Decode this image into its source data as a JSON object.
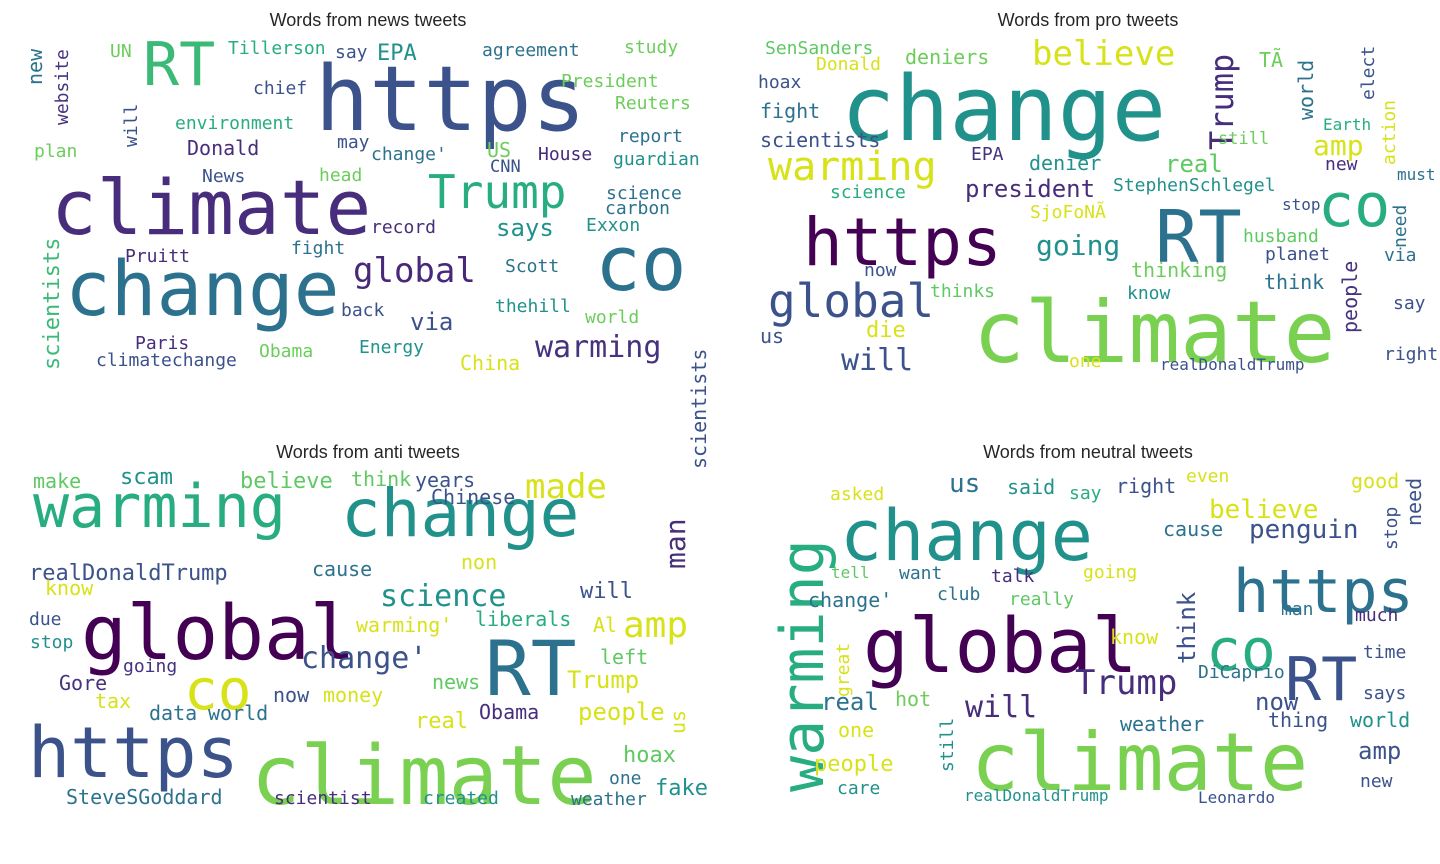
{
  "chart_data": [
    {
      "type": "wordcloud",
      "title": "Words from news tweets",
      "words": [
        {
          "text": "https",
          "color": "#3b528b"
        },
        {
          "text": "climate",
          "color": "#472d7b"
        },
        {
          "text": "change",
          "color": "#2c728e"
        },
        {
          "text": "co",
          "color": "#2c728e"
        },
        {
          "text": "RT",
          "color": "#3aba76"
        },
        {
          "text": "Trump",
          "color": "#27ad81"
        },
        {
          "text": "global",
          "color": "#482878"
        },
        {
          "text": "warming",
          "color": "#46327e"
        },
        {
          "text": "via",
          "color": "#3b528b"
        },
        {
          "text": "says",
          "color": "#21918c"
        },
        {
          "text": "scientists",
          "color": "#3aba76"
        },
        {
          "text": "new",
          "color": "#2c728e"
        },
        {
          "text": "website",
          "color": "#46327e"
        },
        {
          "text": "will",
          "color": "#3b528b"
        },
        {
          "text": "plan",
          "color": "#6ccd5a"
        },
        {
          "text": "UN",
          "color": "#6ccd5a"
        },
        {
          "text": "Tillerson",
          "color": "#27ad81"
        },
        {
          "text": "say",
          "color": "#3b528b"
        },
        {
          "text": "EPA",
          "color": "#21918c"
        },
        {
          "text": "agreement",
          "color": "#2c728e"
        },
        {
          "text": "study",
          "color": "#6ccd5a"
        },
        {
          "text": "chief",
          "color": "#3b528b"
        },
        {
          "text": "President",
          "color": "#6ccd5a"
        },
        {
          "text": "Reuters",
          "color": "#6ccd5a"
        },
        {
          "text": "environment",
          "color": "#27ad81"
        },
        {
          "text": "may",
          "color": "#3b528b"
        },
        {
          "text": "report",
          "color": "#2c728e"
        },
        {
          "text": "Donald",
          "color": "#472d7b"
        },
        {
          "text": "change'",
          "color": "#2c728e"
        },
        {
          "text": "US",
          "color": "#6ccd5a"
        },
        {
          "text": "House",
          "color": "#482878"
        },
        {
          "text": "guardian",
          "color": "#21918c"
        },
        {
          "text": "CNN",
          "color": "#3b528b"
        },
        {
          "text": "News",
          "color": "#3b528b"
        },
        {
          "text": "head",
          "color": "#6ccd5a"
        },
        {
          "text": "science",
          "color": "#2c728e"
        },
        {
          "text": "carbon",
          "color": "#2c728e"
        },
        {
          "text": "Exxon",
          "color": "#21918c"
        },
        {
          "text": "record",
          "color": "#472d7b"
        },
        {
          "text": "Pruitt",
          "color": "#472d7b"
        },
        {
          "text": "fight",
          "color": "#2c728e"
        },
        {
          "text": "Scott",
          "color": "#2c728e"
        },
        {
          "text": "back",
          "color": "#3b528b"
        },
        {
          "text": "thehill",
          "color": "#21918c"
        },
        {
          "text": "world",
          "color": "#6ccd5a"
        },
        {
          "text": "Paris",
          "color": "#472d7b"
        },
        {
          "text": "climatechange",
          "color": "#3b528b"
        },
        {
          "text": "Obama",
          "color": "#6ccd5a"
        },
        {
          "text": "Energy",
          "color": "#21918c"
        },
        {
          "text": "China",
          "color": "#d8e219"
        }
      ]
    },
    {
      "type": "wordcloud",
      "title": "Words from pro tweets",
      "words": [
        {
          "text": "change",
          "color": "#21918c"
        },
        {
          "text": "climate",
          "color": "#7ad151"
        },
        {
          "text": "https",
          "color": "#440154"
        },
        {
          "text": "RT",
          "color": "#2c728e"
        },
        {
          "text": "co",
          "color": "#27ad81"
        },
        {
          "text": "global",
          "color": "#3b528b"
        },
        {
          "text": "warming",
          "color": "#d8e219"
        },
        {
          "text": "believe",
          "color": "#d8e219"
        },
        {
          "text": "Trump",
          "color": "#472d7b"
        },
        {
          "text": "will",
          "color": "#3b528b"
        },
        {
          "text": "going",
          "color": "#21918c"
        },
        {
          "text": "president",
          "color": "#472d7b"
        },
        {
          "text": "SenSanders",
          "color": "#5ec962"
        },
        {
          "text": "Donald",
          "color": "#d8e219"
        },
        {
          "text": "deniers",
          "color": "#6ccd5a"
        },
        {
          "text": "hoax",
          "color": "#3b528b"
        },
        {
          "text": "fight",
          "color": "#2c728e"
        },
        {
          "text": "scientists",
          "color": "#3b528b"
        },
        {
          "text": "still",
          "color": "#6ccd5a"
        },
        {
          "text": "EPA",
          "color": "#46327e"
        },
        {
          "text": "science",
          "color": "#27ad81"
        },
        {
          "text": "denier",
          "color": "#21918c"
        },
        {
          "text": "real",
          "color": "#5ec962"
        },
        {
          "text": "StephenSchlegel",
          "color": "#21918c"
        },
        {
          "text": "SjoFoNÃ",
          "color": "#d8e219"
        },
        {
          "text": "TÃ",
          "color": "#6ccd5a"
        },
        {
          "text": "world",
          "color": "#2c728e"
        },
        {
          "text": "elect",
          "color": "#3b528b"
        },
        {
          "text": "Earth",
          "color": "#27ad81"
        },
        {
          "text": "action",
          "color": "#d8e219"
        },
        {
          "text": "amp",
          "color": "#d8e219"
        },
        {
          "text": "new",
          "color": "#472d7b"
        },
        {
          "text": "must",
          "color": "#2c728e"
        },
        {
          "text": "stop",
          "color": "#3b528b"
        },
        {
          "text": "need",
          "color": "#2c728e"
        },
        {
          "text": "husband",
          "color": "#5ec962"
        },
        {
          "text": "planet",
          "color": "#3b528b"
        },
        {
          "text": "via",
          "color": "#2c728e"
        },
        {
          "text": "thinking",
          "color": "#6ccd5a"
        },
        {
          "text": "think",
          "color": "#2c728e"
        },
        {
          "text": "people",
          "color": "#46327e"
        },
        {
          "text": "know",
          "color": "#21918c"
        },
        {
          "text": "thinks",
          "color": "#5ec962"
        },
        {
          "text": "say",
          "color": "#3b528b"
        },
        {
          "text": "now",
          "color": "#3b528b"
        },
        {
          "text": "die",
          "color": "#d8e219"
        },
        {
          "text": "us",
          "color": "#3b528b"
        },
        {
          "text": "one",
          "color": "#d8e219"
        },
        {
          "text": "realDonaldTrump",
          "color": "#3b528b"
        },
        {
          "text": "right",
          "color": "#3b528b"
        }
      ]
    },
    {
      "type": "wordcloud",
      "title": "Words from anti tweets",
      "words": [
        {
          "text": "warming",
          "color": "#27ad81"
        },
        {
          "text": "change",
          "color": "#21918c"
        },
        {
          "text": "global",
          "color": "#440154"
        },
        {
          "text": "climate",
          "color": "#7ad151"
        },
        {
          "text": "https",
          "color": "#3b528b"
        },
        {
          "text": "RT",
          "color": "#2c728e"
        },
        {
          "text": "co",
          "color": "#d8e219"
        },
        {
          "text": "amp",
          "color": "#d8e219"
        },
        {
          "text": "made",
          "color": "#d8e219"
        },
        {
          "text": "science",
          "color": "#21918c"
        },
        {
          "text": "realDonaldTrump",
          "color": "#3b528b"
        },
        {
          "text": "change'",
          "color": "#3b528b"
        },
        {
          "text": "man",
          "color": "#472d7b"
        },
        {
          "text": "scientists",
          "color": "#3b528b"
        },
        {
          "text": "make",
          "color": "#5ec962"
        },
        {
          "text": "scam",
          "color": "#21918c"
        },
        {
          "text": "believe",
          "color": "#5ec962"
        },
        {
          "text": "think",
          "color": "#5ec962"
        },
        {
          "text": "years",
          "color": "#3b528b"
        },
        {
          "text": "Chinese",
          "color": "#3b528b"
        },
        {
          "text": "non",
          "color": "#d8e219"
        },
        {
          "text": "cause",
          "color": "#2c728e"
        },
        {
          "text": "will",
          "color": "#3b528b"
        },
        {
          "text": "know",
          "color": "#d8e219"
        },
        {
          "text": "due",
          "color": "#3b528b"
        },
        {
          "text": "stop",
          "color": "#21918c"
        },
        {
          "text": "warming'",
          "color": "#d8e219"
        },
        {
          "text": "liberals",
          "color": "#27ad81"
        },
        {
          "text": "Al",
          "color": "#d8e219"
        },
        {
          "text": "left",
          "color": "#5ec962"
        },
        {
          "text": "going",
          "color": "#46327e"
        },
        {
          "text": "Gore",
          "color": "#46327e"
        },
        {
          "text": "Trump",
          "color": "#d8e219"
        },
        {
          "text": "news",
          "color": "#5ec962"
        },
        {
          "text": "tax",
          "color": "#d8e219"
        },
        {
          "text": "now",
          "color": "#3b528b"
        },
        {
          "text": "money",
          "color": "#d8e219"
        },
        {
          "text": "data",
          "color": "#2c728e"
        },
        {
          "text": "world",
          "color": "#2c728e"
        },
        {
          "text": "real",
          "color": "#d8e219"
        },
        {
          "text": "Obama",
          "color": "#472d7b"
        },
        {
          "text": "people",
          "color": "#d8e219"
        },
        {
          "text": "us",
          "color": "#d8e219"
        },
        {
          "text": "hoax",
          "color": "#5ec962"
        },
        {
          "text": "one",
          "color": "#2c728e"
        },
        {
          "text": "fake",
          "color": "#21918c"
        },
        {
          "text": "SteveSGoddard",
          "color": "#2c728e"
        },
        {
          "text": "scientist",
          "color": "#472d7b"
        },
        {
          "text": "created",
          "color": "#21918c"
        },
        {
          "text": "weather",
          "color": "#2c728e"
        }
      ]
    },
    {
      "type": "wordcloud",
      "title": "Words from neutral tweets",
      "words": [
        {
          "text": "change",
          "color": "#21918c"
        },
        {
          "text": "warming",
          "color": "#27ad81"
        },
        {
          "text": "global",
          "color": "#440154"
        },
        {
          "text": "climate",
          "color": "#7ad151"
        },
        {
          "text": "https",
          "color": "#2c728e"
        },
        {
          "text": "co",
          "color": "#27ad81"
        },
        {
          "text": "RT",
          "color": "#3b528b"
        },
        {
          "text": "Trump",
          "color": "#472d7b"
        },
        {
          "text": "will",
          "color": "#472d7b"
        },
        {
          "text": "think",
          "color": "#3b528b"
        },
        {
          "text": "penguin",
          "color": "#3b528b"
        },
        {
          "text": "believe",
          "color": "#d8e219"
        },
        {
          "text": "asked",
          "color": "#d8e219"
        },
        {
          "text": "us",
          "color": "#2c728e"
        },
        {
          "text": "said",
          "color": "#21918c"
        },
        {
          "text": "say",
          "color": "#27ad81"
        },
        {
          "text": "right",
          "color": "#3b528b"
        },
        {
          "text": "even",
          "color": "#d8e219"
        },
        {
          "text": "good",
          "color": "#d8e219"
        },
        {
          "text": "need",
          "color": "#3b528b"
        },
        {
          "text": "stop",
          "color": "#3b528b"
        },
        {
          "text": "cause",
          "color": "#2c728e"
        },
        {
          "text": "tell",
          "color": "#5ec962"
        },
        {
          "text": "want",
          "color": "#2c728e"
        },
        {
          "text": "talk",
          "color": "#472d7b"
        },
        {
          "text": "going",
          "color": "#d8e219"
        },
        {
          "text": "change'",
          "color": "#2c728e"
        },
        {
          "text": "club",
          "color": "#2c728e"
        },
        {
          "text": "really",
          "color": "#5ec962"
        },
        {
          "text": "know",
          "color": "#d8e219"
        },
        {
          "text": "man",
          "color": "#2c728e"
        },
        {
          "text": "much",
          "color": "#472d7b"
        },
        {
          "text": "great",
          "color": "#d8e219"
        },
        {
          "text": "DiCaprio",
          "color": "#2c728e"
        },
        {
          "text": "time",
          "color": "#3b528b"
        },
        {
          "text": "real",
          "color": "#2c728e"
        },
        {
          "text": "hot",
          "color": "#6ccd5a"
        },
        {
          "text": "now",
          "color": "#3b528b"
        },
        {
          "text": "says",
          "color": "#3b528b"
        },
        {
          "text": "one",
          "color": "#d8e219"
        },
        {
          "text": "weather",
          "color": "#2c728e"
        },
        {
          "text": "thing",
          "color": "#3b528b"
        },
        {
          "text": "world",
          "color": "#21918c"
        },
        {
          "text": "still",
          "color": "#21918c"
        },
        {
          "text": "amp",
          "color": "#3b528b"
        },
        {
          "text": "people",
          "color": "#d8e219"
        },
        {
          "text": "care",
          "color": "#21918c"
        },
        {
          "text": "realDonaldTrump",
          "color": "#21918c"
        },
        {
          "text": "Leonardo",
          "color": "#3b528b"
        },
        {
          "text": "new",
          "color": "#3b528b"
        }
      ]
    }
  ]
}
